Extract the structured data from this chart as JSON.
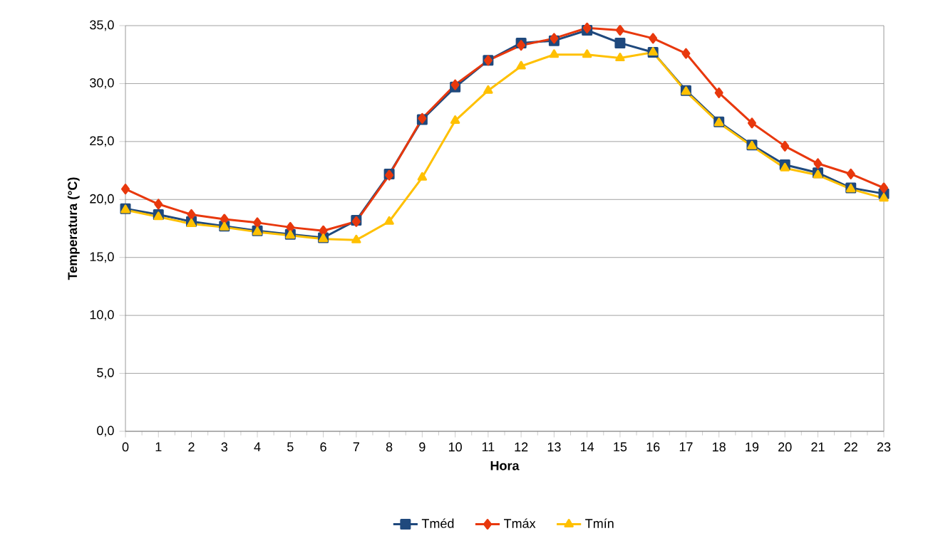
{
  "chart_data": {
    "type": "line",
    "xlabel": "Hora",
    "ylabel": "Temperatura (°C)",
    "x": [
      0,
      1,
      2,
      3,
      4,
      5,
      6,
      7,
      8,
      9,
      10,
      11,
      12,
      13,
      14,
      15,
      16,
      17,
      18,
      19,
      20,
      21,
      22,
      23
    ],
    "series": [
      {
        "name": "Tméd",
        "color": "#1f497d",
        "marker": "square",
        "values": [
          19.2,
          18.7,
          18.1,
          17.7,
          17.3,
          17.0,
          16.7,
          18.2,
          22.2,
          26.9,
          29.7,
          32.0,
          33.5,
          33.7,
          34.6,
          33.5,
          32.7,
          29.4,
          26.7,
          24.7,
          23.0,
          22.3,
          21.0,
          20.5
        ]
      },
      {
        "name": "Tmáx",
        "color": "#e8380d",
        "marker": "diamond",
        "values": [
          20.9,
          19.6,
          18.7,
          18.3,
          18.0,
          17.6,
          17.3,
          18.1,
          22.1,
          27.0,
          29.9,
          32.0,
          33.3,
          33.9,
          34.8,
          34.6,
          33.9,
          32.6,
          29.2,
          26.6,
          24.6,
          23.1,
          22.2,
          21.0
        ]
      },
      {
        "name": "Tmín",
        "color": "#ffc000",
        "marker": "triangle",
        "values": [
          19.1,
          18.5,
          17.9,
          17.6,
          17.2,
          16.9,
          16.6,
          16.5,
          18.1,
          21.9,
          26.8,
          29.4,
          31.5,
          32.5,
          32.5,
          32.2,
          32.7,
          29.3,
          26.6,
          24.6,
          22.7,
          22.1,
          20.9,
          20.1
        ]
      }
    ],
    "xlim": [
      0,
      23
    ],
    "xticks": [
      0,
      1,
      2,
      3,
      4,
      5,
      6,
      7,
      8,
      9,
      10,
      11,
      12,
      13,
      14,
      15,
      16,
      17,
      18,
      19,
      20,
      21,
      22,
      23
    ],
    "ylim": [
      0,
      35
    ],
    "yticks": [
      {
        "value": 0,
        "label": "0,0"
      },
      {
        "value": 5,
        "label": "5,0"
      },
      {
        "value": 10,
        "label": "10,0"
      },
      {
        "value": 15,
        "label": "15,0"
      },
      {
        "value": 20,
        "label": "20,0"
      },
      {
        "value": 25,
        "label": "25,0"
      },
      {
        "value": 30,
        "label": "30,0"
      },
      {
        "value": 35,
        "label": "35,0"
      }
    ],
    "grid": "y",
    "legend": "bottom",
    "line_style": "solid"
  }
}
